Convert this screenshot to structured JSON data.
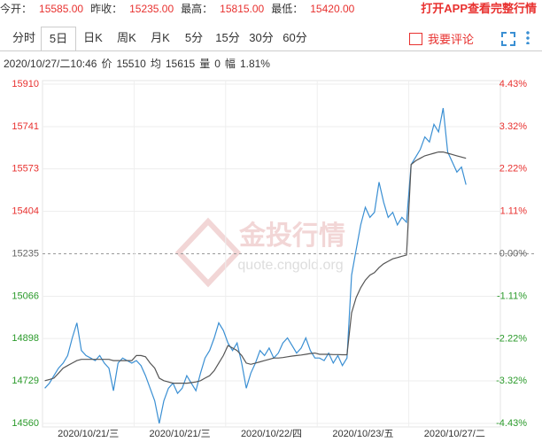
{
  "header": {
    "quotes": [
      {
        "label": "今开：",
        "value": "15585.00"
      },
      {
        "label": "昨收：",
        "value": "15235.00"
      },
      {
        "label": "最高：",
        "value": "15815.00"
      },
      {
        "label": "最低：",
        "value": "15420.00"
      }
    ],
    "app_link": "打开APP查看完整行情"
  },
  "tabs": [
    "分时",
    "5日",
    "日K",
    "周K",
    "月K",
    "5分",
    "15分",
    "30分",
    "60分"
  ],
  "comment": "我要评论",
  "status": {
    "time": "2020/10/27/二10:46",
    "items": [
      {
        "label": "价",
        "value": "15510"
      },
      {
        "label": "均",
        "value": "15615"
      },
      {
        "label": "量",
        "value": "0"
      },
      {
        "label": "幅",
        "value": "1.81%"
      }
    ]
  },
  "watermark": {
    "title": "金投行情",
    "url": "quote.cngold.org"
  },
  "chart_data": {
    "type": "line",
    "x_labels": [
      "2020/10/21/三",
      "2020/10/21/三",
      "2020/10/22/四",
      "2020/10/23/五",
      "2020/10/27/二"
    ],
    "ylim": [
      14560,
      15910
    ],
    "yticks": [
      15910,
      15741,
      15573,
      15404,
      15235,
      15066,
      14898,
      14729,
      14560
    ],
    "y2lim": [
      -4.43,
      4.43
    ],
    "y2ticks": [
      {
        "value": 4.43,
        "label": "4.43%"
      },
      {
        "value": 3.32,
        "label": "3.32%"
      },
      {
        "value": 2.22,
        "label": "2.22%"
      },
      {
        "value": 1.11,
        "label": "1.11%"
      },
      {
        "value": 0,
        "label": "0.00%"
      },
      {
        "value": -1.11,
        "label": "-1.11%"
      },
      {
        "value": -2.22,
        "label": "-2.22%"
      },
      {
        "value": -3.32,
        "label": "-3.32%"
      },
      {
        "value": -4.43,
        "label": "-4.43%"
      }
    ],
    "grid": true,
    "up_color": "#e8312f",
    "down_color": "#2a9a2a",
    "flat_color": "#666666",
    "series": [
      {
        "color": "#3a8fd3",
        "values": [
          14700,
          14720,
          14750,
          14780,
          14800,
          14830,
          14900,
          14960,
          14850,
          14830,
          14820,
          14810,
          14830,
          14800,
          14780,
          14690,
          14800,
          14820,
          14810,
          14800,
          14810,
          14790,
          14750,
          14700,
          14650,
          14560,
          14650,
          14700,
          14720,
          14680,
          14700,
          14750,
          14720,
          14690,
          14760,
          14820,
          14850,
          14900,
          14960,
          14930,
          14880,
          14850,
          14880,
          14800,
          14700,
          14760,
          14800,
          14850,
          14830,
          14860,
          14820,
          14840,
          14880,
          14900,
          14870,
          14840,
          14860,
          14900,
          14850,
          14820,
          14820,
          14810,
          14840,
          14800,
          14830,
          14790,
          14820,
          15150,
          15250,
          15350,
          15420,
          15380,
          15400,
          15520,
          15440,
          15380,
          15400,
          15350,
          15380,
          15360,
          15590,
          15620,
          15650,
          15700,
          15680,
          15750,
          15720,
          15815,
          15640,
          15600,
          15560,
          15580,
          15510,
          null,
          null,
          null,
          null,
          null,
          null,
          null
        ]
      },
      {
        "color": "#555555",
        "values": [
          14730,
          14735,
          14740,
          14760,
          14780,
          14790,
          14800,
          14810,
          14815,
          14815,
          14815,
          14815,
          14815,
          14815,
          14815,
          14810,
          14810,
          14810,
          14810,
          14810,
          14830,
          14830,
          14825,
          14800,
          14780,
          14740,
          14730,
          14725,
          14720,
          14720,
          14720,
          14720,
          14722,
          14725,
          14730,
          14740,
          14750,
          14770,
          14800,
          14830,
          14870,
          14860,
          14850,
          14830,
          14800,
          14795,
          14800,
          14805,
          14810,
          14815,
          14820,
          14820,
          14822,
          14825,
          14828,
          14830,
          14832,
          14835,
          14838,
          14840,
          14835,
          14835,
          14835,
          14834,
          14834,
          14833,
          14833,
          15000,
          15060,
          15100,
          15130,
          15150,
          15160,
          15180,
          15195,
          15205,
          15215,
          15220,
          15225,
          15230,
          15590,
          15605,
          15615,
          15625,
          15630,
          15635,
          15640,
          15640,
          15635,
          15630,
          15625,
          15620,
          15615,
          null,
          null,
          null,
          null,
          null,
          null,
          null
        ]
      }
    ]
  }
}
